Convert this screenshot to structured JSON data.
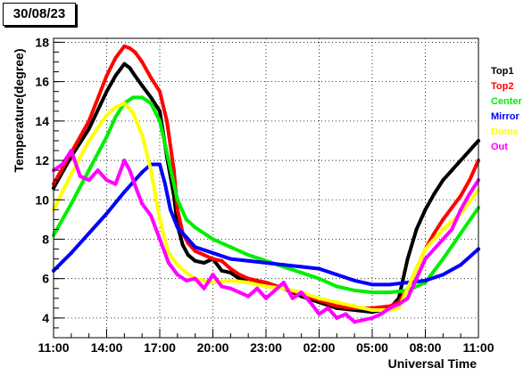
{
  "date_label": "30/08/23",
  "chart_data": {
    "type": "scatter",
    "title": "",
    "xlabel": "Universal Time",
    "ylabel": "Temperature(degree)",
    "xlim": [
      0,
      24
    ],
    "ylim": [
      3,
      18.2
    ],
    "grid": true,
    "legend_position": "right",
    "x_ticks": [
      {
        "x": 0,
        "label": "11:00"
      },
      {
        "x": 3,
        "label": "14:00"
      },
      {
        "x": 6,
        "label": "17:00"
      },
      {
        "x": 9,
        "label": "20:00"
      },
      {
        "x": 12,
        "label": "23:00"
      },
      {
        "x": 15,
        "label": "02:00"
      },
      {
        "x": 18,
        "label": "05:00"
      },
      {
        "x": 21,
        "label": "08:00"
      },
      {
        "x": 24,
        "label": "11:00"
      }
    ],
    "y_ticks": [
      4,
      6,
      8,
      10,
      12,
      14,
      16,
      18
    ],
    "series": [
      {
        "name": "Top1",
        "color": "#000000",
        "x": [
          0,
          1,
          2,
          3,
          3.5,
          4,
          4.3,
          4.6,
          5,
          5.5,
          6,
          6.4,
          6.8,
          7,
          7.3,
          7.6,
          8,
          8.5,
          9,
          9.5,
          10,
          10.5,
          11,
          12,
          13,
          14,
          15,
          16,
          17,
          18,
          19,
          19.5,
          20,
          20.5,
          21,
          21.5,
          22,
          22.5,
          23,
          23.5,
          24
        ],
        "y": [
          10.6,
          12.2,
          13.6,
          15.5,
          16.3,
          16.9,
          16.7,
          16.3,
          15.8,
          15.2,
          14.5,
          12.2,
          10.2,
          8.7,
          7.7,
          7.2,
          6.9,
          6.8,
          7.0,
          6.4,
          6.3,
          6.0,
          5.9,
          5.8,
          5.5,
          5.1,
          4.8,
          4.5,
          4.4,
          4.3,
          4.5,
          5.0,
          7.0,
          8.5,
          9.5,
          10.3,
          11.0,
          11.5,
          12.0,
          12.5,
          13.0
        ]
      },
      {
        "name": "Top2",
        "color": "#ff0000",
        "x": [
          0,
          1,
          2,
          3,
          3.5,
          4,
          4.3,
          4.6,
          5,
          5.5,
          6,
          6.4,
          6.8,
          7,
          7.3,
          7.6,
          8,
          8.5,
          9,
          9.5,
          10,
          10.5,
          11,
          12,
          13,
          14,
          15,
          16,
          17,
          18,
          19,
          19.5,
          20,
          20.5,
          21,
          21.5,
          22,
          22.5,
          23,
          23.5,
          24
        ],
        "y": [
          10.8,
          12.4,
          14.0,
          16.3,
          17.2,
          17.8,
          17.7,
          17.5,
          17.0,
          16.2,
          15.5,
          14.0,
          11.5,
          9.5,
          8.3,
          7.8,
          7.4,
          7.2,
          7.0,
          6.9,
          6.5,
          6.2,
          6.0,
          5.8,
          5.5,
          5.2,
          4.9,
          4.6,
          4.5,
          4.5,
          4.6,
          4.8,
          5.5,
          6.5,
          7.5,
          8.3,
          9.0,
          9.6,
          10.2,
          11.0,
          12.0
        ]
      },
      {
        "name": "Center",
        "color": "#00ee00",
        "x": [
          0,
          1,
          2,
          3,
          3.5,
          4,
          4.5,
          5,
          5.5,
          6,
          6.5,
          7,
          7.5,
          8,
          9,
          10,
          11,
          12,
          13,
          14,
          15,
          16,
          17,
          18,
          19,
          20,
          21,
          22,
          23,
          24
        ],
        "y": [
          8.2,
          9.8,
          11.5,
          13.2,
          14.2,
          14.9,
          15.2,
          15.2,
          14.9,
          14.0,
          12.0,
          10.0,
          9.0,
          8.6,
          8.0,
          7.6,
          7.2,
          6.9,
          6.6,
          6.3,
          6.0,
          5.6,
          5.4,
          5.3,
          5.3,
          5.4,
          5.8,
          7.0,
          8.3,
          9.6
        ]
      },
      {
        "name": "Mirror",
        "color": "#0000ff",
        "x": [
          0,
          1,
          2,
          3,
          4,
          5,
          5.5,
          6,
          6.3,
          6.6,
          7,
          7.5,
          8,
          9,
          10,
          11,
          12,
          13,
          14,
          15,
          16,
          17,
          18,
          19,
          20,
          21,
          22,
          23,
          24
        ],
        "y": [
          6.4,
          7.3,
          8.3,
          9.3,
          10.4,
          11.4,
          11.8,
          11.8,
          10.8,
          9.5,
          8.6,
          8.1,
          7.6,
          7.3,
          7.0,
          6.9,
          6.8,
          6.7,
          6.6,
          6.5,
          6.2,
          5.9,
          5.7,
          5.7,
          5.8,
          5.9,
          6.2,
          6.7,
          7.5
        ]
      },
      {
        "name": "Dome",
        "color": "#ffff00",
        "x": [
          0,
          1,
          2,
          3,
          3.5,
          4,
          4.5,
          5,
          5.5,
          6,
          6.5,
          7,
          7.5,
          8,
          9,
          10,
          11,
          12,
          13,
          14,
          15,
          16,
          17,
          18,
          19,
          19.5,
          20,
          20.5,
          21,
          22,
          23,
          24
        ],
        "y": [
          9.5,
          11.3,
          13.0,
          14.3,
          14.7,
          14.9,
          14.4,
          13.3,
          11.5,
          9.0,
          7.3,
          6.7,
          6.3,
          6.0,
          5.8,
          5.9,
          5.8,
          5.6,
          5.5,
          5.3,
          5.0,
          4.8,
          4.6,
          4.4,
          4.4,
          4.5,
          5.5,
          6.5,
          7.5,
          8.5,
          9.3,
          10.5
        ]
      },
      {
        "name": "Out",
        "color": "#ff00ff",
        "x": [
          0,
          0.5,
          1,
          1.5,
          2,
          2.5,
          3,
          3.5,
          4,
          4.3,
          4.7,
          5,
          5.5,
          6,
          6.5,
          7,
          7.5,
          8,
          8.5,
          9,
          9.5,
          10,
          10.5,
          11,
          11.5,
          12,
          12.5,
          13,
          13.5,
          14,
          14.5,
          15,
          15.5,
          16,
          16.5,
          17,
          17.5,
          18,
          18.5,
          19,
          19.5,
          20,
          20.5,
          21,
          21.5,
          22,
          22.5,
          23,
          23.5,
          24
        ],
        "y": [
          11.5,
          11.8,
          12.5,
          11.2,
          11.0,
          11.5,
          11.0,
          10.8,
          12.0,
          11.5,
          10.5,
          9.8,
          9.2,
          8.0,
          6.8,
          6.2,
          5.9,
          6.0,
          5.5,
          6.2,
          5.6,
          5.5,
          5.3,
          5.1,
          5.5,
          5.0,
          5.4,
          5.8,
          5.0,
          5.3,
          4.8,
          4.2,
          4.5,
          4.0,
          4.2,
          3.8,
          3.9,
          4.0,
          4.2,
          4.5,
          4.7,
          5.0,
          6.0,
          7.0,
          7.5,
          8.0,
          8.5,
          9.5,
          10.3,
          11.0
        ]
      }
    ]
  }
}
